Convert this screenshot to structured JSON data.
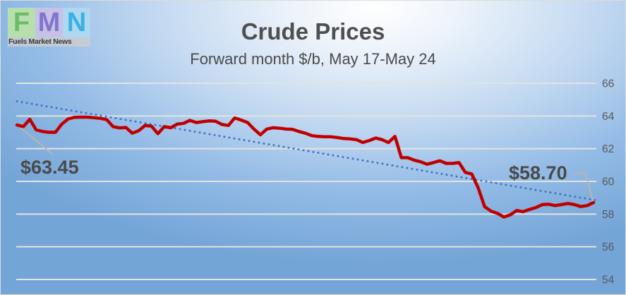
{
  "logo": {
    "letters": [
      "F",
      "M",
      "N"
    ],
    "caption": "Fuels Market News",
    "colors": {
      "f_bg": "#b7dfae",
      "f_fg": "#6cbb66",
      "m_bg": "#c7c0e7",
      "m_fg": "#8175cd",
      "n_bg": "#aed7f0",
      "n_fg": "#3ab0e4"
    }
  },
  "chart_data": {
    "type": "line",
    "title": "Crude Prices",
    "subtitle": "Forward month $/b, May 17-May 24",
    "xlabel": "",
    "ylabel": "",
    "ylim": [
      54,
      66
    ],
    "yticks": [
      66,
      64,
      62,
      60,
      58,
      56,
      54
    ],
    "y_axis_side": "right",
    "grid": true,
    "legend": "none",
    "colors": {
      "price_line": "#c00000",
      "trend_line": "#4472c4",
      "gridline": "#e3e3df",
      "axis_label": "#595959",
      "leader_line": "#bdb5ab"
    },
    "series": [
      {
        "name": "price",
        "style": "solid",
        "values": [
          63.45,
          63.35,
          63.8,
          63.15,
          63.05,
          63.0,
          63.0,
          63.5,
          63.82,
          63.92,
          63.93,
          63.93,
          63.9,
          63.86,
          63.78,
          63.35,
          63.27,
          63.3,
          62.95,
          63.1,
          63.42,
          63.38,
          62.92,
          63.35,
          63.28,
          63.5,
          63.55,
          63.73,
          63.6,
          63.65,
          63.7,
          63.68,
          63.48,
          63.42,
          63.88,
          63.75,
          63.6,
          63.2,
          62.85,
          63.2,
          63.28,
          63.25,
          63.2,
          63.18,
          63.05,
          62.95,
          62.8,
          62.75,
          62.73,
          62.73,
          62.68,
          62.62,
          62.6,
          62.55,
          62.38,
          62.5,
          62.65,
          62.55,
          62.38,
          62.75,
          61.45,
          61.45,
          61.3,
          61.2,
          61.05,
          61.15,
          61.26,
          61.1,
          61.1,
          61.15,
          60.55,
          60.45,
          59.6,
          58.45,
          58.18,
          58.05,
          57.82,
          57.95,
          58.22,
          58.15,
          58.28,
          58.4,
          58.58,
          58.6,
          58.52,
          58.58,
          58.65,
          58.58,
          58.46,
          58.52,
          58.7
        ]
      },
      {
        "name": "trend",
        "style": "dotted",
        "values": [
          64.9,
          58.85
        ]
      }
    ],
    "annotations": [
      {
        "text": "$63.45",
        "value": 63.45,
        "position": "start"
      },
      {
        "text": "$58.70",
        "value": 58.7,
        "position": "end"
      }
    ]
  }
}
